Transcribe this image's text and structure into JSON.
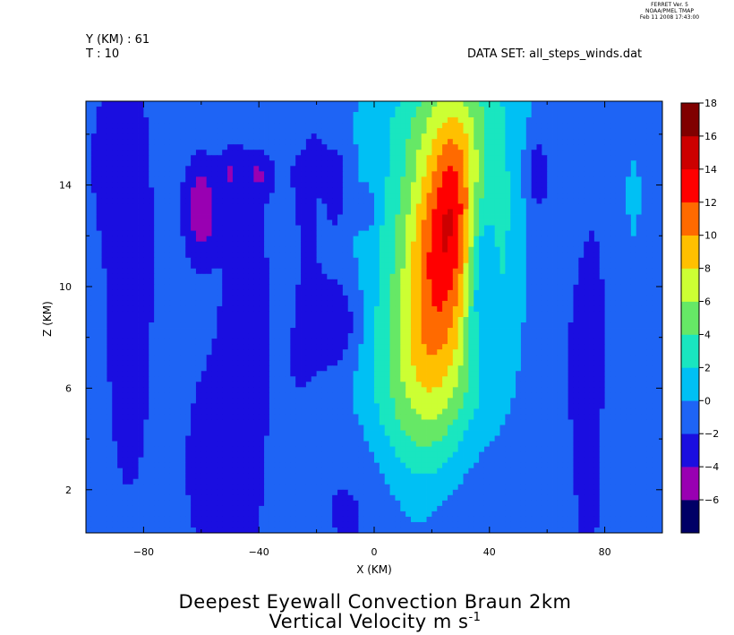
{
  "stamp": {
    "line1": "FERRET Ver. 5",
    "line2": "NOAA/PMEL TMAP",
    "line3": "Feb 11 2008 17:43:00"
  },
  "header": {
    "y_label": "Y (KM) : 61",
    "t_label": "T : 10",
    "dataset": "DATA SET: all_steps_winds.dat"
  },
  "titles": {
    "line1": "Deepest Eyewall Convection Braun 2km",
    "line2_text": "Vertical Velocity m s",
    "line2_exponent": "-1"
  },
  "chart_data": {
    "type": "heatmap",
    "xlabel": "X (KM)",
    "ylabel": "Z (KM)",
    "xlim": [
      -100,
      100
    ],
    "ylim": [
      0.3,
      17.3
    ],
    "x_ticks": [
      -80,
      -40,
      0,
      40,
      80
    ],
    "y_ticks": [
      2,
      6,
      10,
      14
    ],
    "colorbar": {
      "levels": [
        -6,
        -4,
        -2,
        0,
        2,
        4,
        6,
        8,
        10,
        12,
        14,
        16,
        18
      ],
      "labels": [
        "18",
        "16",
        "14",
        "12",
        "10",
        "8",
        "6",
        "4",
        "2",
        "0",
        "-2",
        "-4",
        "-6"
      ],
      "colors": [
        "#000066",
        "#9900b2",
        "#1a0ee0",
        "#1e64f5",
        "#00c0f4",
        "#19e6c0",
        "#66e866",
        "#ccff33",
        "#ffc000",
        "#ff6a00",
        "#ff0000",
        "#cc0000",
        "#800000"
      ]
    },
    "background_value": 0.6,
    "features": [
      {
        "x": 25,
        "z": 11.5,
        "sx": 18,
        "sz": 6.5,
        "amp": 7,
        "tilt": 0.45
      },
      {
        "x": 22,
        "z": 11,
        "sx": 8,
        "sz": 4.2,
        "amp": 6.5,
        "tilt": 0.45
      },
      {
        "x": 28,
        "z": 13.5,
        "sx": 5,
        "sz": 2.5,
        "amp": 3.5,
        "tilt": 0.3
      },
      {
        "x": 12,
        "z": 5.5,
        "sx": 15,
        "sz": 2.5,
        "amp": 2.2,
        "tilt": 0
      },
      {
        "x": 37,
        "z": 10.5,
        "sx": 3.5,
        "sz": 2.3,
        "amp": -4.5,
        "tilt": 0.2
      },
      {
        "x": -60,
        "z": 13,
        "sx": 3.5,
        "sz": 1.2,
        "amp": -4.5,
        "tilt": 0
      },
      {
        "x": -12,
        "z": 8.5,
        "sx": 6,
        "sz": 1.3,
        "amp": -3,
        "tilt": 0
      },
      {
        "x": 56,
        "z": 14.5,
        "sx": 3,
        "sz": 1.1,
        "amp": -3,
        "tilt": 0
      },
      {
        "x": -13,
        "z": 14,
        "sx": 2.5,
        "sz": 1.1,
        "amp": -2.8,
        "tilt": 0
      },
      {
        "x": -50,
        "z": 14.5,
        "sx": 2.5,
        "sz": 0.5,
        "amp": -2.5,
        "tilt": 0
      },
      {
        "x": -40,
        "z": 14.4,
        "sx": 2.5,
        "sz": 0.5,
        "amp": -2.5,
        "tilt": 0
      },
      {
        "x": -20,
        "z": 15,
        "sx": 2,
        "sz": 0.6,
        "amp": -2.5,
        "tilt": 0
      },
      {
        "x": -2,
        "z": 13,
        "sx": 2,
        "sz": 0.6,
        "amp": -2.2,
        "tilt": 0
      },
      {
        "x": -85,
        "z": 10,
        "sx": 6,
        "sz": 6,
        "amp": -1.4,
        "tilt": 0
      },
      {
        "x": -45,
        "z": 8,
        "sx": 6,
        "sz": 6,
        "amp": -1.3,
        "tilt": 0
      },
      {
        "x": -55,
        "z": 3,
        "sx": 8,
        "sz": 3,
        "amp": -1.3,
        "tilt": 0
      },
      {
        "x": -5,
        "z": 2,
        "sx": 10,
        "sz": 2.5,
        "amp": -1.6,
        "tilt": 0
      },
      {
        "x": 30,
        "z": 2,
        "sx": 14,
        "sz": 2.5,
        "amp": -1.6,
        "tilt": 0
      },
      {
        "x": -25,
        "z": 11,
        "sx": 6,
        "sz": 5,
        "amp": -1.2,
        "tilt": 0
      },
      {
        "x": 75,
        "z": 6,
        "sx": 5,
        "sz": 6,
        "amp": -1.2,
        "tilt": 0
      },
      {
        "x": 60,
        "z": 9,
        "sx": 6,
        "sz": 4,
        "amp": -1.2,
        "tilt": 0
      },
      {
        "x": -90,
        "z": 15,
        "sx": 6,
        "sz": 2,
        "amp": -1.2,
        "tilt": 0
      },
      {
        "x": 90,
        "z": 13.5,
        "sx": 3,
        "sz": 2,
        "amp": 1.8,
        "tilt": 0
      },
      {
        "x": -30,
        "z": 11,
        "sx": 2.5,
        "sz": 1.5,
        "amp": 1.8,
        "tilt": 0
      },
      {
        "x": 85,
        "z": 3,
        "sx": 5,
        "sz": 2,
        "amp": 0.8,
        "tilt": 0
      },
      {
        "x": 0,
        "z": 16.5,
        "sx": 30,
        "sz": 1,
        "amp": 0.6,
        "tilt": 0
      }
    ]
  }
}
